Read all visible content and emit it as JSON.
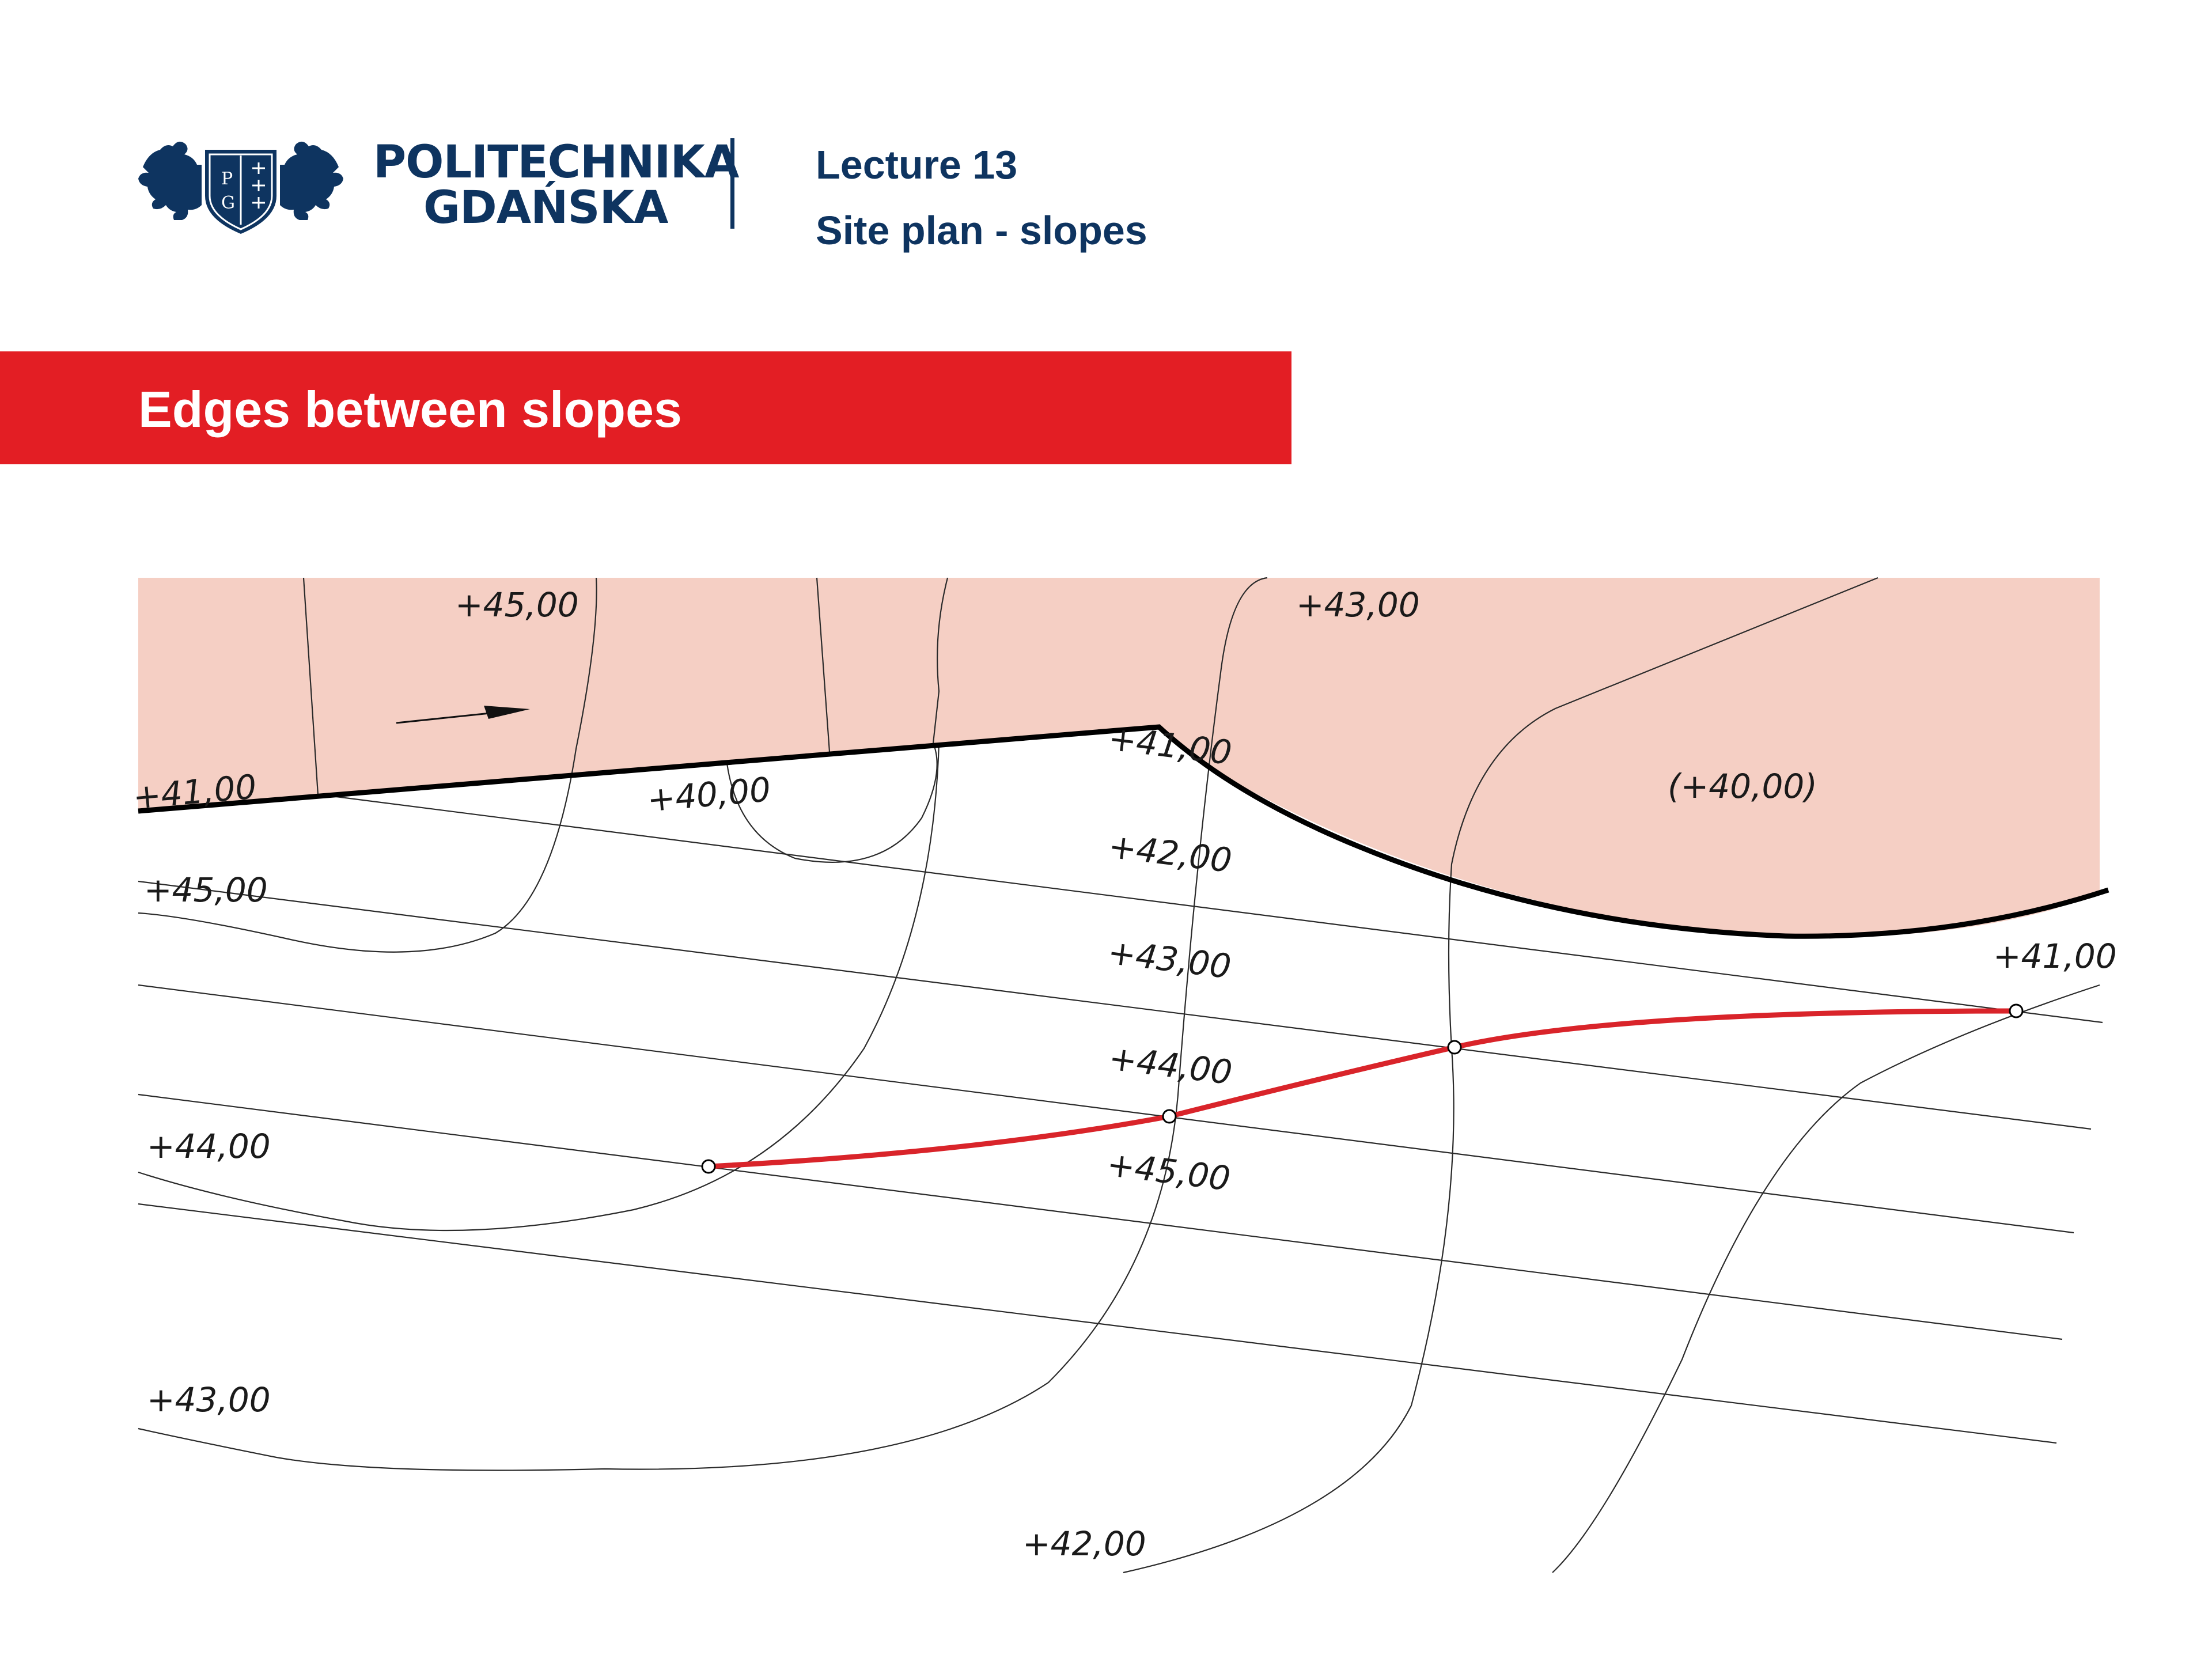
{
  "header": {
    "university_line1": "POLITECHNIKA",
    "university_line2": "GDAŃSKA",
    "emblem_letters": [
      "P",
      "G"
    ],
    "lecture_number": "Lecture 13",
    "lecture_topic": "Site plan - slopes"
  },
  "section": {
    "title": "Edges between slopes"
  },
  "colors": {
    "brand_navy": "#0e3460",
    "banner_red": "#e31e24",
    "fill_zone": "#f5cfc4",
    "edge_line": "#000000",
    "red_edge": "#d9242a"
  },
  "diagram": {
    "labels": {
      "top_45": "+45,00",
      "top_43": "+43,00",
      "edge_41": "+41,00",
      "edge_40": "+40,00",
      "zone_40": "(+40,00)",
      "slope_41": "+41,00",
      "slope_42": "+42,00",
      "slope_43": "+43,00",
      "slope_44": "+44,00",
      "slope_45": "+45,00",
      "left_45": "+45,00",
      "left_44": "+44,00",
      "left_43": "+43,00",
      "right_41": "+41,00",
      "bottom_42": "+42,00"
    }
  }
}
